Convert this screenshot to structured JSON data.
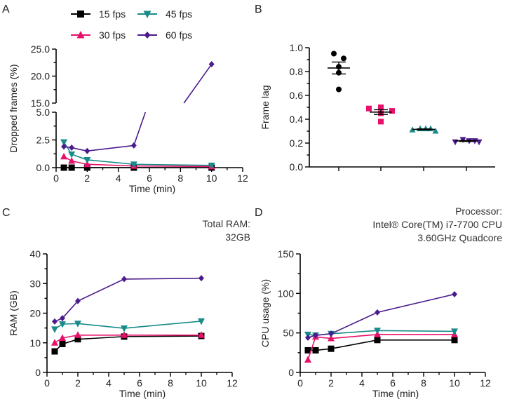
{
  "colors": {
    "15 fps": "#000000",
    "30 fps": "#e8106a",
    "45 fps": "#1a8a8a",
    "60 fps": "#4b1a8c"
  },
  "markers": {
    "15 fps": "square",
    "30 fps": "triangle-up",
    "45 fps": "triangle-down",
    "60 fps": "diamond"
  },
  "legend": [
    "15 fps",
    "45 fps",
    "30 fps",
    "60 fps"
  ],
  "chart_data": [
    {
      "panel": "A",
      "type": "line",
      "xlabel": "Time (min)",
      "ylabel": "Dropped frames (%)",
      "xlim": [
        0,
        12
      ],
      "xticks": [
        0,
        2,
        4,
        6,
        8,
        10,
        12
      ],
      "ylim": [
        0,
        25
      ],
      "y_axis_break": [
        5,
        15
      ],
      "yticks_lower": [
        "0.0",
        "2.5",
        "5.0"
      ],
      "yticks_upper": [
        "15.0",
        "20.0",
        "25.0"
      ],
      "x": [
        0.5,
        1,
        2,
        5,
        10
      ],
      "series": [
        {
          "name": "15 fps",
          "values": [
            0,
            0,
            0,
            0,
            0
          ]
        },
        {
          "name": "30 fps",
          "values": [
            1.0,
            0.6,
            0.3,
            0.15,
            0.1
          ]
        },
        {
          "name": "45 fps",
          "values": [
            2.3,
            1.2,
            0.7,
            0.3,
            0.2
          ]
        },
        {
          "name": "60 fps",
          "values": [
            1.9,
            1.8,
            1.5,
            2.0,
            22.2
          ]
        }
      ]
    },
    {
      "panel": "B",
      "type": "scatter",
      "ylabel": "Frame lag",
      "ylim": [
        0,
        1.0
      ],
      "yticks": [
        "0.0",
        "0.2",
        "0.4",
        "0.6",
        "0.8",
        "1.0"
      ],
      "groups": [
        {
          "name": "15 fps",
          "values": [
            0.95,
            0.91,
            0.84,
            0.79,
            0.65
          ],
          "mean": 0.83,
          "sem": 0.05
        },
        {
          "name": "30 fps",
          "values": [
            0.49,
            0.5,
            0.47,
            0.45,
            0.38
          ],
          "mean": 0.46,
          "sem": 0.02
        },
        {
          "name": "45 fps",
          "values": [
            0.31,
            0.32,
            0.32,
            0.32,
            0.3
          ],
          "mean": 0.315,
          "sem": 0.004
        },
        {
          "name": "60 fps",
          "values": [
            0.21,
            0.23,
            0.22,
            0.22,
            0.21
          ],
          "mean": 0.218,
          "sem": 0.004
        }
      ]
    },
    {
      "panel": "C",
      "type": "line",
      "xlabel": "Time (min)",
      "ylabel": "RAM (GB)",
      "annotation": [
        "Total RAM:",
        "32GB"
      ],
      "xlim": [
        0,
        12
      ],
      "xticks": [
        0,
        2,
        4,
        6,
        8,
        10,
        12
      ],
      "ylim": [
        0,
        40
      ],
      "yticks": [
        0,
        10,
        20,
        30,
        40
      ],
      "x": [
        0.5,
        1,
        2,
        5,
        10
      ],
      "series": [
        {
          "name": "15 fps",
          "values": [
            7.1,
            9.6,
            11.2,
            12.1,
            12.3
          ]
        },
        {
          "name": "30 fps",
          "values": [
            10.0,
            11.6,
            12.6,
            12.6,
            12.6
          ]
        },
        {
          "name": "45 fps",
          "values": [
            14.6,
            16.3,
            16.5,
            14.9,
            17.3
          ]
        },
        {
          "name": "60 fps",
          "values": [
            17.2,
            18.3,
            24.1,
            31.5,
            31.8
          ]
        }
      ]
    },
    {
      "panel": "D",
      "type": "line",
      "xlabel": "Time (min)",
      "ylabel": "CPU usage (%)",
      "annotation": [
        "Processor:",
        "Intel® Core(TM) i7-7700 CPU",
        "3.60GHz Quadcore"
      ],
      "xlim": [
        0,
        12
      ],
      "xticks": [
        0,
        2,
        4,
        6,
        8,
        10,
        12
      ],
      "ylim": [
        0,
        150
      ],
      "yticks": [
        0,
        50,
        100,
        150
      ],
      "x": [
        0.5,
        1,
        2,
        5,
        10
      ],
      "series": [
        {
          "name": "15 fps",
          "values": [
            28,
            28,
            30,
            41,
            41
          ]
        },
        {
          "name": "30 fps",
          "values": [
            16,
            45,
            43,
            48,
            48
          ]
        },
        {
          "name": "45 fps",
          "values": [
            48,
            47,
            49,
            53,
            52
          ]
        },
        {
          "name": "60 fps",
          "values": [
            44,
            47,
            49,
            76,
            99
          ]
        }
      ]
    }
  ]
}
